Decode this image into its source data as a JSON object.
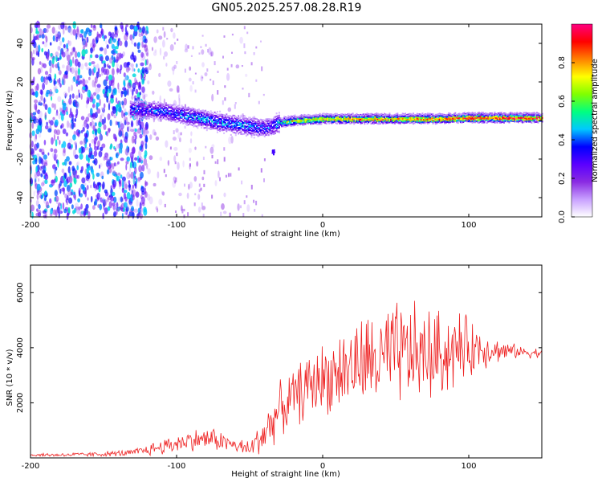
{
  "title": "GN05.2025.257.08.28.R19",
  "chart_data": [
    {
      "type": "heatmap",
      "xlabel": "Height of straight line (km)",
      "ylabel": "Frequency (Hz)",
      "xlim": [
        -200,
        150
      ],
      "ylim": [
        -50,
        50
      ],
      "xticks": [
        -200,
        -100,
        0,
        100
      ],
      "yticks": [
        -40,
        -20,
        0,
        20,
        40
      ],
      "colorbar": {
        "label": "Normalized spectral amplitude",
        "range": [
          0,
          1
        ],
        "ticks": [
          "0.0",
          "0.2",
          "0.4",
          "0.6",
          "0.8"
        ],
        "colors": [
          "#ffffff",
          "#c8a0ff",
          "#8a2be2",
          "#5a00ff",
          "#0000ff",
          "#00c8ff",
          "#00ff80",
          "#80ff00",
          "#ffff00",
          "#ff8000",
          "#ff0000",
          "#ff0080"
        ]
      },
      "ridge": {
        "description_x": [
          -132,
          -110,
          -90,
          -70,
          -50,
          -40,
          -35,
          -30,
          -20,
          0,
          20,
          50,
          80,
          100,
          120,
          150
        ],
        "center_hz": [
          6,
          5,
          2,
          -1,
          -3,
          -4,
          -3,
          -1,
          0,
          1,
          1,
          1,
          1,
          1.5,
          1.5,
          1.5
        ],
        "amplitude": [
          0.3,
          0.35,
          0.4,
          0.4,
          0.4,
          0.35,
          0.35,
          0.5,
          0.75,
          0.75,
          0.8,
          0.8,
          0.85,
          0.9,
          0.9,
          0.9
        ]
      },
      "noise_region_x": [
        -200,
        -120
      ]
    },
    {
      "type": "line",
      "xlabel": "Height of straight line (km)",
      "ylabel": "SNR (10 * v/v)",
      "xlim": [
        -200,
        150
      ],
      "ylim": [
        0,
        7000
      ],
      "xticks": [
        -200,
        -100,
        0,
        100
      ],
      "yticks": [
        2000,
        4000,
        6000
      ],
      "series": [
        {
          "name": "SNR",
          "color": "#ee2222",
          "envelope_x": [
            -200,
            -160,
            -130,
            -110,
            -90,
            -75,
            -60,
            -50,
            -40,
            -30,
            -20,
            -10,
            0,
            10,
            20,
            30,
            40,
            50,
            60,
            70,
            80,
            90,
            100,
            110,
            120,
            135,
            150
          ],
          "envelope_mid": [
            100,
            120,
            180,
            400,
            650,
            700,
            450,
            300,
            900,
            1700,
            2200,
            2600,
            2900,
            3100,
            3300,
            3500,
            3500,
            3700,
            3800,
            3700,
            3800,
            3900,
            4000,
            4000,
            3900,
            3850,
            3800
          ],
          "envelope_spread": [
            80,
            100,
            150,
            350,
            450,
            500,
            300,
            400,
            900,
            1100,
            1200,
            1400,
            1500,
            1700,
            1900,
            2000,
            2200,
            2300,
            2200,
            2100,
            1900,
            1700,
            1300,
            900,
            500,
            250,
            200
          ]
        }
      ]
    }
  ]
}
